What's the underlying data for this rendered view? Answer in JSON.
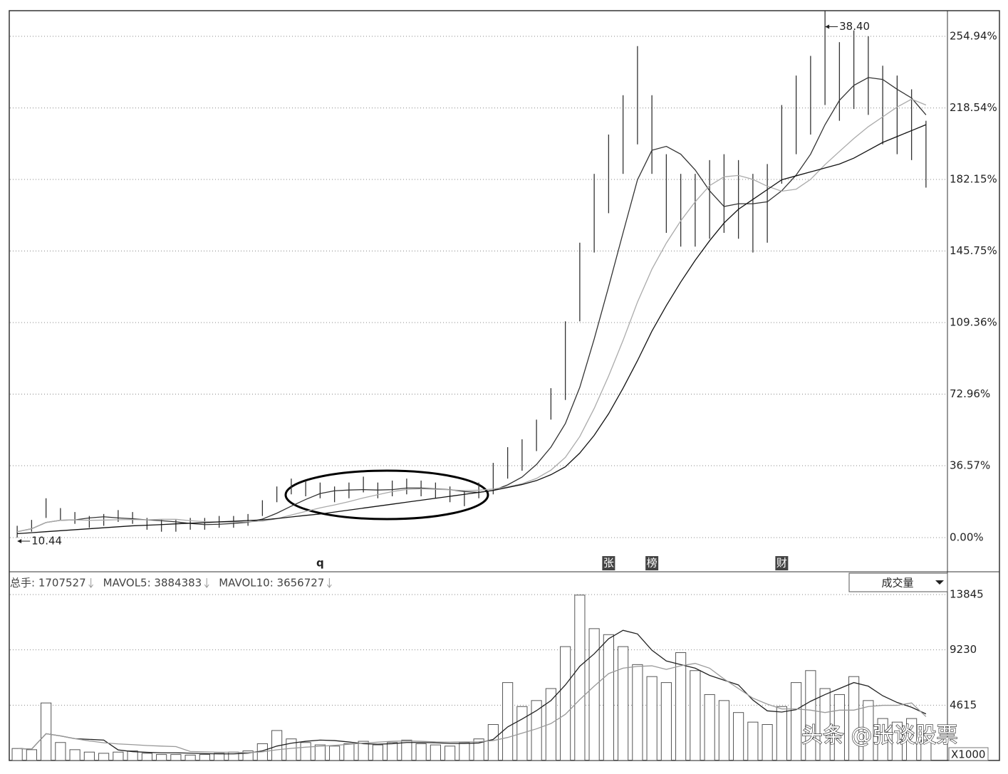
{
  "chart_data": [
    {
      "type": "hilo",
      "categories": [
        null,
        null,
        null,
        null,
        null,
        null,
        null,
        null,
        null,
        null,
        null,
        null,
        null,
        null,
        null,
        null,
        null,
        null,
        null,
        null,
        null,
        "q",
        null,
        null,
        null,
        null,
        null,
        null,
        null,
        null,
        null,
        null,
        null,
        null,
        null,
        null,
        null,
        null,
        null,
        null,
        null,
        "张",
        null,
        null,
        "榜",
        null,
        null,
        null,
        null,
        null,
        null,
        null,
        null,
        "财",
        null,
        null,
        null,
        null,
        null,
        null,
        null,
        null,
        null,
        null
      ],
      "high": [
        6,
        9,
        20,
        15,
        13,
        11,
        12,
        14,
        13,
        10,
        9,
        9,
        10,
        10,
        11,
        11,
        12,
        19,
        26,
        30,
        29,
        28,
        26,
        28,
        31,
        28,
        29,
        30,
        29,
        28,
        26,
        24,
        28,
        38,
        46,
        50,
        60,
        76,
        110,
        150,
        185,
        205,
        225,
        250,
        225,
        195,
        185,
        185,
        192,
        195,
        192,
        185,
        190,
        220,
        235,
        245,
        267.82,
        252,
        258,
        255,
        240,
        235,
        228,
        212
      ],
      "low": [
        0,
        3,
        10,
        9,
        7,
        5,
        6,
        8,
        7,
        4,
        3,
        3,
        4,
        4,
        5,
        5,
        6,
        11,
        18,
        22,
        21,
        20,
        18,
        20,
        23,
        20,
        21,
        22,
        21,
        20,
        18,
        16,
        20,
        22,
        30,
        34,
        44,
        60,
        70,
        110,
        145,
        165,
        185,
        200,
        185,
        155,
        148,
        148,
        152,
        155,
        152,
        145,
        150,
        180,
        195,
        205,
        220,
        212,
        218,
        215,
        200,
        195,
        192,
        178
      ],
      "color": "#333333",
      "lines": [
        {
          "color": "#333333",
          "values": [
            3,
            4.5,
            7.7,
            8.8,
            9,
            10,
            10.6,
            10,
            9.6,
            9,
            8.6,
            8,
            7.2,
            6.6,
            6.8,
            7.2,
            7.8,
            9.4,
            12.4,
            16,
            19.4,
            22.4,
            23.8,
            24.2,
            24.4,
            24.2,
            24.4,
            25.2,
            25.2,
            24.8,
            24.4,
            23.4,
            23,
            24,
            26.8,
            30.8,
            37.2,
            46,
            58,
            76.4,
            101,
            127.6,
            155,
            182,
            197,
            199,
            195,
            187,
            176.4,
            168.4,
            169.8,
            169.8,
            170.8,
            176.4,
            184.4,
            195,
            210,
            222.4,
            230,
            234,
            233,
            228,
            223.6,
            215
          ]
        },
        {
          "color": "#aaaaaa",
          "values": [
            3,
            4.5,
            7.7,
            8.8,
            9,
            8.8,
            8.9,
            9.1,
            9.2,
            9,
            9.3,
            9.3,
            8.6,
            8.1,
            7.9,
            7.9,
            8,
            8.4,
            9.6,
            11.5,
            13.3,
            15.1,
            16.6,
            18.3,
            20.2,
            21.8,
            23.4,
            24.5,
            24.8,
            24.6,
            24.3,
            23.9,
            24.1,
            24.7,
            25.8,
            27.4,
            30.1,
            34.3,
            40.8,
            51.4,
            65.7,
            82.2,
            100.3,
            119.8,
            136.5,
            149.8,
            161.1,
            170.8,
            179,
            183.5,
            184.2,
            182.2,
            178.7,
            176.2,
            177.2,
            182.2,
            189.7,
            196.4,
            203,
            209,
            214,
            219,
            223,
            220
          ]
        },
        {
          "color": "#111111",
          "values": [
            2,
            2.5,
            3,
            3.5,
            4,
            4.5,
            5,
            5.5,
            6,
            6.3,
            6.6,
            7,
            7.3,
            7.6,
            8,
            8.3,
            8.7,
            9,
            9.7,
            10.5,
            11.3,
            12,
            13,
            14,
            15,
            16,
            17,
            18,
            19,
            20,
            21,
            22,
            23,
            24,
            25.5,
            27,
            29,
            32,
            36,
            43,
            52,
            63,
            76,
            90,
            105,
            118,
            130,
            141,
            151,
            160,
            167,
            172,
            177,
            182,
            184,
            186,
            188,
            190,
            193,
            197,
            201,
            204,
            207,
            210
          ]
        }
      ],
      "ylim": [
        -16.3,
        268
      ],
      "yticks": [
        {
          "value": 0,
          "label": "0.00%"
        },
        {
          "value": 36.57,
          "label": "36.57%"
        },
        {
          "value": 72.96,
          "label": "72.96%"
        },
        {
          "value": 109.36,
          "label": "109.36%"
        },
        {
          "value": 145.75,
          "label": "145.75%"
        },
        {
          "value": 182.15,
          "label": "182.15%"
        },
        {
          "value": 218.54,
          "label": "218.54%"
        },
        {
          "value": 254.94,
          "label": "254.94%"
        }
      ],
      "grid": true,
      "annotations": [
        {
          "value": 267.82,
          "label": "38.40"
        },
        {
          "value": 0,
          "label": "10.44"
        }
      ]
    },
    {
      "type": "bar",
      "legend": [
        "总手: 1707527",
        "MAVOL5: 3884383",
        "MAVOL10: 3656727"
      ],
      "indicator": "成交量",
      "unit_label": "X1000",
      "color": "#555555",
      "values": [
        1000,
        900,
        4800,
        1500,
        900,
        700,
        600,
        700,
        800,
        600,
        500,
        500,
        450,
        500,
        600,
        700,
        800,
        1400,
        2500,
        1800,
        1500,
        1300,
        1200,
        1400,
        1600,
        1300,
        1500,
        1700,
        1400,
        1300,
        1200,
        1500,
        1800,
        3000,
        6500,
        4500,
        5000,
        6000,
        9500,
        13800,
        11000,
        10500,
        9500,
        8000,
        7000,
        6500,
        9000,
        7500,
        5500,
        5000,
        4000,
        3200,
        3000,
        4500,
        6500,
        7500,
        6000,
        5500,
        7000,
        5000,
        3500,
        3200,
        3500,
        1707.527
      ],
      "lines": [
        {
          "color": "#222222",
          "values": [
            1000,
            950,
            2233,
            2050,
            1820,
            1760,
            1700,
            880,
            740,
            680,
            640,
            640,
            610,
            570,
            550,
            550,
            610,
            800,
            1200,
            1440,
            1600,
            1700,
            1660,
            1540,
            1400,
            1360,
            1400,
            1500,
            1500,
            1480,
            1420,
            1420,
            1460,
            1760,
            2800,
            3460,
            4160,
            5000,
            6300,
            7860,
            8900,
            10160,
            10860,
            10560,
            9200,
            8300,
            8000,
            7700,
            7100,
            6700,
            6300,
            5040,
            4140,
            4040,
            4240,
            4940,
            5500,
            6000,
            6500,
            6200,
            5400,
            4840,
            4440,
            3884.383
          ]
        },
        {
          "color": "#999999",
          "values": [
            1000,
            950,
            2233,
            2050,
            1820,
            1630,
            1480,
            1380,
            1320,
            1250,
            1200,
            1160,
            750,
            720,
            690,
            680,
            650,
            720,
            890,
            1010,
            1110,
            1190,
            1260,
            1350,
            1450,
            1530,
            1600,
            1630,
            1600,
            1550,
            1530,
            1550,
            1560,
            1660,
            1920,
            2280,
            2640,
            3080,
            3850,
            5080,
            6200,
            7250,
            7700,
            7850,
            7900,
            7600,
            7900,
            8100,
            7700,
            6800,
            6000,
            5200,
            4700,
            4300,
            4300,
            4200,
            4000,
            4200,
            4200,
            4500,
            4600,
            4600,
            4800,
            3656.727
          ]
        }
      ],
      "ylim": [
        0,
        14260
      ],
      "yticks": [
        4615,
        9230,
        13845
      ],
      "grid": true
    }
  ],
  "watermark": "头条 @张谈股票"
}
